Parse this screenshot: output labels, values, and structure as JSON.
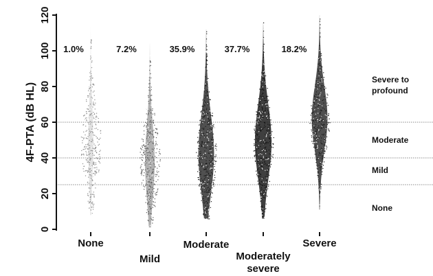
{
  "chart_data": {
    "type": "violin",
    "title": "",
    "xlabel": "",
    "ylabel": "4F-PTA (dB HL)",
    "ylim": [
      0,
      120
    ],
    "yticks": [
      "0",
      "20",
      "40",
      "60",
      "80",
      "100",
      "120"
    ],
    "categories": [
      {
        "lines": [
          "None"
        ]
      },
      {
        "lines": [
          "Mild"
        ]
      },
      {
        "lines": [
          "Moderate"
        ]
      },
      {
        "lines": [
          "Moderately",
          "severe"
        ]
      },
      {
        "lines": [
          "Severe"
        ]
      }
    ],
    "percentages": [
      "1.0%",
      "7.2%",
      "35.9%",
      "37.7%",
      "18.2%"
    ],
    "distributions": [
      {
        "min": 8,
        "max": 113,
        "peak": 48,
        "density": 0.3,
        "color": "#8a8a8a"
      },
      {
        "min": 1,
        "max": 104,
        "peak": 38,
        "density": 0.55,
        "color": "#555555"
      },
      {
        "min": 6,
        "max": 112,
        "peak": 42,
        "density": 0.9,
        "color": "#1a1a1a"
      },
      {
        "min": 6,
        "max": 116,
        "peak": 49,
        "density": 0.95,
        "color": "#111111"
      },
      {
        "min": 11,
        "max": 120,
        "peak": 62,
        "density": 0.9,
        "color": "#1a1a1a"
      }
    ],
    "reference_lines": [
      25,
      40,
      60
    ],
    "bands": [
      {
        "lines": [
          "Severe to",
          "profound"
        ],
        "y": 80
      },
      {
        "lines": [
          "Moderate"
        ],
        "y": 50
      },
      {
        "lines": [
          "Mild"
        ],
        "y": 33
      },
      {
        "lines": [
          "None"
        ],
        "y": 12
      }
    ]
  }
}
